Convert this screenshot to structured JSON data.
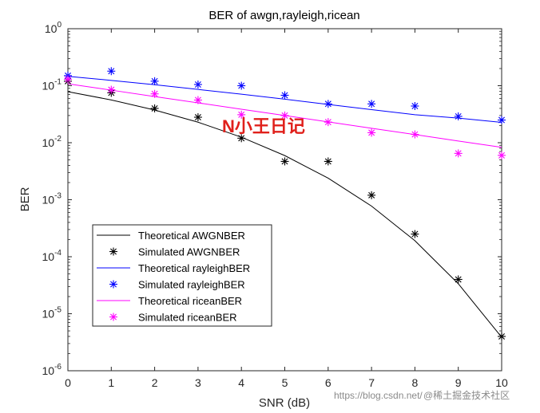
{
  "chart_data": {
    "type": "line",
    "title": "BER of awgn,rayleigh,ricean",
    "xlabel": "SNR (dB)",
    "ylabel": "BER",
    "xlim": [
      0,
      10
    ],
    "ylim": [
      1e-06,
      1
    ],
    "yscale": "log",
    "x": [
      0,
      1,
      2,
      3,
      4,
      5,
      6,
      7,
      8,
      9,
      10
    ],
    "xticks": [
      "0",
      "1",
      "2",
      "3",
      "4",
      "5",
      "6",
      "7",
      "8",
      "9",
      "10"
    ],
    "yticks": [
      {
        "base": "10",
        "exp": "0"
      },
      {
        "base": "10",
        "exp": "-1"
      },
      {
        "base": "10",
        "exp": "-2"
      },
      {
        "base": "10",
        "exp": "-3"
      },
      {
        "base": "10",
        "exp": "-4"
      },
      {
        "base": "10",
        "exp": "-5"
      },
      {
        "base": "10",
        "exp": "-6"
      }
    ],
    "series": [
      {
        "name": "Theoretical AWGNBER",
        "kind": "line",
        "color": "#000000",
        "values": [
          0.0786,
          0.0563,
          0.0375,
          0.0229,
          0.0125,
          0.00595,
          0.00239,
          0.000773,
          0.000191,
          3.36e-05,
          3.87e-06
        ]
      },
      {
        "name": "Simulated AWGNBER",
        "kind": "marker",
        "color": "#000000",
        "values": [
          0.12,
          0.075,
          0.04,
          0.028,
          0.012,
          0.0047,
          0.0047,
          0.0012,
          0.00025,
          4e-05,
          4e-06
        ]
      },
      {
        "name": "Theoretical rayleighBER",
        "kind": "line",
        "color": "#0000ff",
        "values": [
          0.146,
          0.124,
          0.104,
          0.086,
          0.071,
          0.058,
          0.047,
          0.038,
          0.031,
          0.027,
          0.0227
        ]
      },
      {
        "name": "Simulated rayleighBER",
        "kind": "marker",
        "color": "#0000ff",
        "values": [
          0.15,
          0.18,
          0.12,
          0.105,
          0.1,
          0.068,
          0.048,
          0.048,
          0.044,
          0.029,
          0.025
        ]
      },
      {
        "name": "Theoretical riceanBER",
        "kind": "line",
        "color": "#ff00ff",
        "values": [
          0.108,
          0.0836,
          0.0646,
          0.05,
          0.0387,
          0.03,
          0.0232,
          0.0179,
          0.0139,
          0.0107,
          0.0083
        ]
      },
      {
        "name": "Simulated riceanBER",
        "kind": "marker",
        "color": "#ff00ff",
        "values": [
          0.13,
          0.085,
          0.072,
          0.056,
          0.031,
          0.03,
          0.023,
          0.015,
          0.014,
          0.0065,
          0.006
        ]
      }
    ],
    "legend_position": "bottom-left"
  },
  "overlay_text": "N小王日记",
  "watermark": {
    "url": "https://blog.csdn.net/",
    "brand": "@稀土掘金技术社区"
  },
  "colors": {
    "axes": "#262626",
    "overlay": "#e0201b"
  }
}
